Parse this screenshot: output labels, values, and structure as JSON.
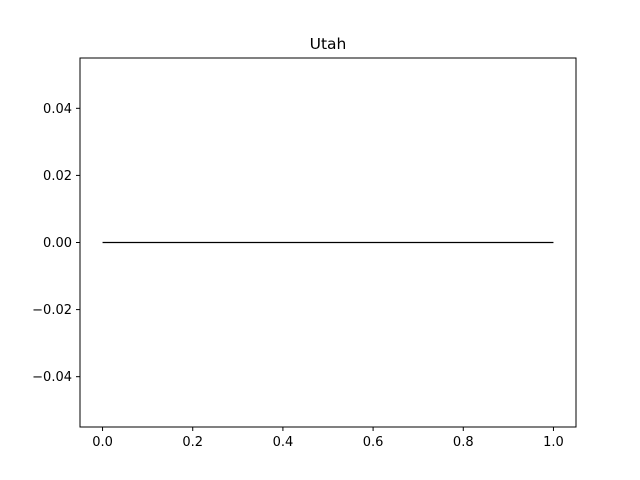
{
  "chart_data": {
    "type": "line",
    "title": "Utah",
    "xlabel": "",
    "ylabel": "",
    "xlim": [
      -0.05,
      1.05
    ],
    "ylim": [
      -0.055,
      0.055
    ],
    "x_ticks": [
      0.0,
      0.2,
      0.4,
      0.6,
      0.8,
      1.0
    ],
    "x_tick_labels": [
      "0.0",
      "0.2",
      "0.4",
      "0.6",
      "0.8",
      "1.0"
    ],
    "y_ticks": [
      0.04,
      0.02,
      0.0,
      -0.02,
      -0.04
    ],
    "y_tick_labels": [
      "0.04",
      "0.02",
      "0.00",
      "−0.02",
      "−0.04"
    ],
    "grid": false,
    "series": [
      {
        "color": "#000000",
        "x": [
          0.0,
          1.0
        ],
        "y": [
          0.0,
          0.0
        ]
      }
    ]
  }
}
